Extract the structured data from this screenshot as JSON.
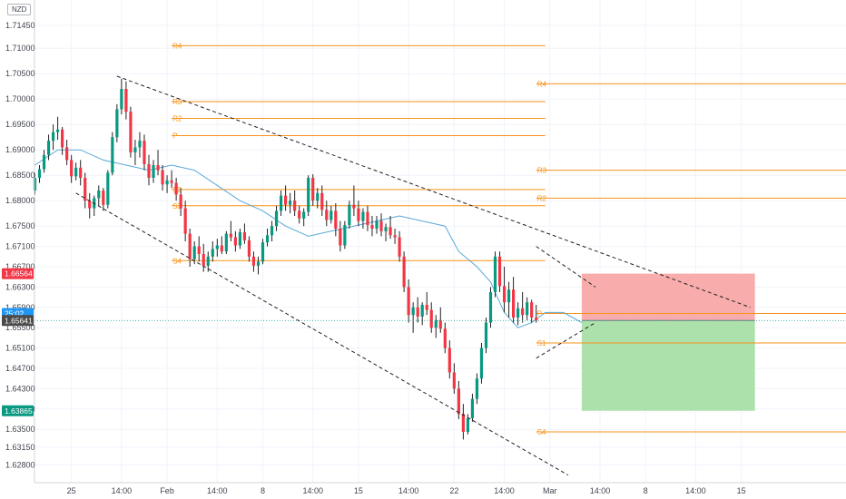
{
  "currency": "NZD",
  "colors": {
    "up": "#26a69a",
    "down": "#ef5350",
    "candle_up_body": "#089981",
    "candle_down_body": "#f23645",
    "pivot": "#f7931a",
    "ma": "#5aa8d8",
    "trend": "#222222",
    "risk_zone": "#f8a8a8",
    "reward_zone": "#a8dfa8",
    "stop_tag": "#f23645",
    "target_tag": "#089981",
    "price_tag": "#4a4a4a",
    "time_tag": "#2196f3",
    "price_line": "#26a69a"
  },
  "chart_data": {
    "type": "candlestick",
    "y_axis": {
      "range": [
        1.6245,
        1.7195
      ],
      "ticks": [
        "1.71450",
        "1.71000",
        "1.70500",
        "1.70000",
        "1.69500",
        "1.69000",
        "1.68500",
        "1.68000",
        "1.67500",
        "1.67100",
        "1.66700",
        "1.66300",
        "1.65900",
        "1.65500",
        "1.65100",
        "1.64700",
        "1.64300",
        "1.63900",
        "1.63500",
        "1.63150",
        "1.62800"
      ],
      "tick_values": [
        1.7145,
        1.71,
        1.705,
        1.7,
        1.695,
        1.69,
        1.685,
        1.68,
        1.675,
        1.671,
        1.667,
        1.663,
        1.659,
        1.655,
        1.651,
        1.647,
        1.643,
        1.639,
        1.635,
        1.6315,
        1.628
      ]
    },
    "x_axis": {
      "ticks": [
        "25",
        "14:00",
        "Feb",
        "14:00",
        "8",
        "14:00",
        "15",
        "14:00",
        "22",
        "14:00",
        "Mar",
        "14:00",
        "8",
        "14:00",
        "15"
      ],
      "tick_index": [
        8,
        19,
        29,
        40,
        50,
        61,
        71,
        82,
        92,
        103,
        113,
        124,
        134,
        145,
        155
      ]
    },
    "price_tags": [
      {
        "label": "1.66564",
        "value": 1.66564,
        "kind": "stop"
      },
      {
        "label": "25:02",
        "value": 1.6578,
        "kind": "time"
      },
      {
        "label": "1.65641",
        "value": 1.65641,
        "kind": "price"
      },
      {
        "label": "1.63865",
        "value": 1.63865,
        "kind": "target"
      }
    ],
    "pivots_feb": {
      "levels": [
        {
          "label": "R4",
          "value": 1.7105
        },
        {
          "label": "R3",
          "value": 1.6995
        },
        {
          "label": "R2",
          "value": 1.6962
        },
        {
          "label": "P",
          "value": 1.6928
        },
        {
          "label": "S2",
          "value": 1.6822
        },
        {
          "label": "S3",
          "value": 1.679
        },
        {
          "label": "S4",
          "value": 1.6682
        }
      ],
      "from_index": 30,
      "to_index": 112
    },
    "pivots_mar": {
      "levels": [
        {
          "label": "R4",
          "value": 1.703
        },
        {
          "label": "R3",
          "value": 1.686
        },
        {
          "label": "R2",
          "value": 1.6805
        },
        {
          "label": "P",
          "value": 1.6578
        },
        {
          "label": "S1",
          "value": 1.652
        },
        {
          "label": "S4",
          "value": 1.6345
        }
      ],
      "from_index": 110,
      "to_index": 163
    },
    "position": {
      "entry": 1.65641,
      "stop": 1.66564,
      "target": 1.63865,
      "from_index": 120,
      "to_index": 158
    },
    "trendlines": [
      {
        "from": [
          18,
          1.7045
        ],
        "to": [
          157,
          1.659
        ]
      },
      {
        "from": [
          9,
          1.6815
        ],
        "to": [
          117,
          1.626
        ]
      },
      {
        "from": [
          110,
          1.671
        ],
        "to": [
          123,
          1.663
        ]
      },
      {
        "from": [
          110,
          1.649
        ],
        "to": [
          123,
          1.656
        ]
      }
    ],
    "ma_line": [
      [
        0,
        1.687
      ],
      [
        5,
        1.69
      ],
      [
        10,
        1.69
      ],
      [
        15,
        1.688
      ],
      [
        20,
        1.687
      ],
      [
        25,
        1.686
      ],
      [
        30,
        1.687
      ],
      [
        35,
        1.686
      ],
      [
        40,
        1.683
      ],
      [
        45,
        1.68
      ],
      [
        50,
        1.678
      ],
      [
        55,
        1.675
      ],
      [
        60,
        1.673
      ],
      [
        65,
        1.674
      ],
      [
        70,
        1.675
      ],
      [
        75,
        1.676
      ],
      [
        80,
        1.677
      ],
      [
        85,
        1.676
      ],
      [
        90,
        1.675
      ],
      [
        93,
        1.67
      ],
      [
        97,
        1.667
      ],
      [
        100,
        1.664
      ],
      [
        103,
        1.658
      ],
      [
        106,
        1.655
      ],
      [
        109,
        1.656
      ],
      [
        112,
        1.658
      ],
      [
        116,
        1.658
      ],
      [
        120,
        1.656
      ]
    ],
    "candles": [
      [
        1.682,
        1.6855,
        1.6812,
        1.6845
      ],
      [
        1.6845,
        1.687,
        1.6835,
        1.6862
      ],
      [
        1.6862,
        1.69,
        1.6855,
        1.689
      ],
      [
        1.689,
        1.693,
        1.688,
        1.6918
      ],
      [
        1.6918,
        1.695,
        1.69,
        1.6935
      ],
      [
        1.6935,
        1.6965,
        1.692,
        1.694
      ],
      [
        1.694,
        1.6945,
        1.689,
        1.6905
      ],
      [
        1.6905,
        1.692,
        1.687,
        1.688
      ],
      [
        1.688,
        1.689,
        1.6835,
        1.6848
      ],
      [
        1.6848,
        1.6875,
        1.684,
        1.6865
      ],
      [
        1.6865,
        1.688,
        1.683,
        1.6845
      ],
      [
        1.6845,
        1.6855,
        1.6785,
        1.68
      ],
      [
        1.68,
        1.6815,
        1.6765,
        1.6785
      ],
      [
        1.6785,
        1.681,
        1.677,
        1.6805
      ],
      [
        1.6805,
        1.683,
        1.679,
        1.682
      ],
      [
        1.682,
        1.6825,
        1.678,
        1.6792
      ],
      [
        1.6792,
        1.686,
        1.6785,
        1.6855
      ],
      [
        1.6855,
        1.6935,
        1.685,
        1.6925
      ],
      [
        1.6925,
        1.699,
        1.6915,
        1.698
      ],
      [
        1.698,
        1.704,
        1.697,
        1.702
      ],
      [
        1.702,
        1.7035,
        1.696,
        1.6975
      ],
      [
        1.6975,
        1.6985,
        1.6885,
        1.6895
      ],
      [
        1.6895,
        1.692,
        1.687,
        1.6905
      ],
      [
        1.6905,
        1.6935,
        1.6885,
        1.6918
      ],
      [
        1.6918,
        1.693,
        1.686,
        1.6872
      ],
      [
        1.6872,
        1.689,
        1.683,
        1.6845
      ],
      [
        1.6845,
        1.688,
        1.6835,
        1.687
      ],
      [
        1.687,
        1.69,
        1.685,
        1.686
      ],
      [
        1.686,
        1.687,
        1.682,
        1.6832
      ],
      [
        1.6832,
        1.685,
        1.6815,
        1.684
      ],
      [
        1.684,
        1.686,
        1.6825,
        1.6835
      ],
      [
        1.6835,
        1.6845,
        1.68,
        1.6812
      ],
      [
        1.6812,
        1.6825,
        1.677,
        1.6785
      ],
      [
        1.6785,
        1.68,
        1.672,
        1.6735
      ],
      [
        1.6735,
        1.6745,
        1.667,
        1.6685
      ],
      [
        1.6685,
        1.672,
        1.6675,
        1.671
      ],
      [
        1.671,
        1.673,
        1.668,
        1.6695
      ],
      [
        1.6695,
        1.6715,
        1.666,
        1.6672
      ],
      [
        1.6672,
        1.67,
        1.666,
        1.669
      ],
      [
        1.669,
        1.672,
        1.668,
        1.6705
      ],
      [
        1.6705,
        1.6725,
        1.669,
        1.6712
      ],
      [
        1.6712,
        1.673,
        1.6695,
        1.67
      ],
      [
        1.67,
        1.674,
        1.6695,
        1.6735
      ],
      [
        1.6735,
        1.676,
        1.672,
        1.6728
      ],
      [
        1.6728,
        1.674,
        1.67,
        1.6712
      ],
      [
        1.6712,
        1.6745,
        1.6705,
        1.6738
      ],
      [
        1.6738,
        1.6755,
        1.6715,
        1.6722
      ],
      [
        1.6722,
        1.673,
        1.668,
        1.669
      ],
      [
        1.669,
        1.67,
        1.666,
        1.6672
      ],
      [
        1.6672,
        1.669,
        1.6655,
        1.668
      ],
      [
        1.668,
        1.6725,
        1.6675,
        1.6718
      ],
      [
        1.6718,
        1.6745,
        1.671,
        1.6732
      ],
      [
        1.6732,
        1.676,
        1.672,
        1.675
      ],
      [
        1.675,
        1.679,
        1.674,
        1.678
      ],
      [
        1.678,
        1.682,
        1.677,
        1.681
      ],
      [
        1.681,
        1.683,
        1.678,
        1.6792
      ],
      [
        1.6792,
        1.6815,
        1.6775,
        1.68
      ],
      [
        1.68,
        1.682,
        1.677,
        1.678
      ],
      [
        1.678,
        1.679,
        1.6755,
        1.6765
      ],
      [
        1.6765,
        1.6785,
        1.675,
        1.6778
      ],
      [
        1.6778,
        1.685,
        1.677,
        1.6845
      ],
      [
        1.6845,
        1.6852,
        1.679,
        1.68
      ],
      [
        1.68,
        1.6825,
        1.6785,
        1.6815
      ],
      [
        1.6815,
        1.683,
        1.677,
        1.6782
      ],
      [
        1.6782,
        1.68,
        1.675,
        1.6762
      ],
      [
        1.6762,
        1.679,
        1.6755,
        1.678
      ],
      [
        1.678,
        1.6795,
        1.673,
        1.6745
      ],
      [
        1.6745,
        1.676,
        1.67,
        1.6712
      ],
      [
        1.6712,
        1.676,
        1.6705,
        1.6752
      ],
      [
        1.6752,
        1.68,
        1.6745,
        1.6792
      ],
      [
        1.6792,
        1.683,
        1.677,
        1.6785
      ],
      [
        1.6785,
        1.68,
        1.675,
        1.676
      ],
      [
        1.676,
        1.6785,
        1.6745,
        1.6778
      ],
      [
        1.6778,
        1.679,
        1.674,
        1.6752
      ],
      [
        1.6752,
        1.677,
        1.673,
        1.6745
      ],
      [
        1.6745,
        1.677,
        1.6735,
        1.676
      ],
      [
        1.676,
        1.6775,
        1.673,
        1.674
      ],
      [
        1.674,
        1.6755,
        1.672,
        1.6748
      ],
      [
        1.6748,
        1.677,
        1.6725,
        1.6732
      ],
      [
        1.6732,
        1.6745,
        1.6715,
        1.6728
      ],
      [
        1.6728,
        1.674,
        1.668,
        1.669
      ],
      [
        1.669,
        1.67,
        1.662,
        1.663
      ],
      [
        1.663,
        1.6645,
        1.656,
        1.6575
      ],
      [
        1.6575,
        1.66,
        1.654,
        1.659
      ],
      [
        1.659,
        1.661,
        1.656,
        1.6572
      ],
      [
        1.6572,
        1.66,
        1.6555,
        1.6595
      ],
      [
        1.6595,
        1.662,
        1.6575,
        1.6585
      ],
      [
        1.6585,
        1.66,
        1.654,
        1.655
      ],
      [
        1.655,
        1.6575,
        1.653,
        1.6565
      ],
      [
        1.6565,
        1.659,
        1.654,
        1.6548
      ],
      [
        1.6548,
        1.656,
        1.65,
        1.651
      ],
      [
        1.651,
        1.6525,
        1.645,
        1.6462
      ],
      [
        1.6462,
        1.648,
        1.642,
        1.643
      ],
      [
        1.643,
        1.6445,
        1.637,
        1.638
      ],
      [
        1.638,
        1.64,
        1.633,
        1.6345
      ],
      [
        1.6345,
        1.638,
        1.634,
        1.6372
      ],
      [
        1.6372,
        1.642,
        1.6365,
        1.641
      ],
      [
        1.641,
        1.646,
        1.64,
        1.645
      ],
      [
        1.645,
        1.652,
        1.644,
        1.651
      ],
      [
        1.651,
        1.657,
        1.65,
        1.656
      ],
      [
        1.656,
        1.663,
        1.655,
        1.662
      ],
      [
        1.662,
        1.67,
        1.661,
        1.669
      ],
      [
        1.669,
        1.67,
        1.662,
        1.6632
      ],
      [
        1.6632,
        1.667,
        1.658,
        1.66
      ],
      [
        1.66,
        1.664,
        1.657,
        1.6625
      ],
      [
        1.6625,
        1.665,
        1.656,
        1.657
      ],
      [
        1.657,
        1.66,
        1.6555,
        1.6588
      ],
      [
        1.6588,
        1.662,
        1.656,
        1.6575
      ],
      [
        1.6575,
        1.661,
        1.6565,
        1.66
      ],
      [
        1.66,
        1.6605,
        1.656,
        1.657
      ],
      [
        1.657,
        1.6595,
        1.656,
        1.6564
      ]
    ]
  }
}
